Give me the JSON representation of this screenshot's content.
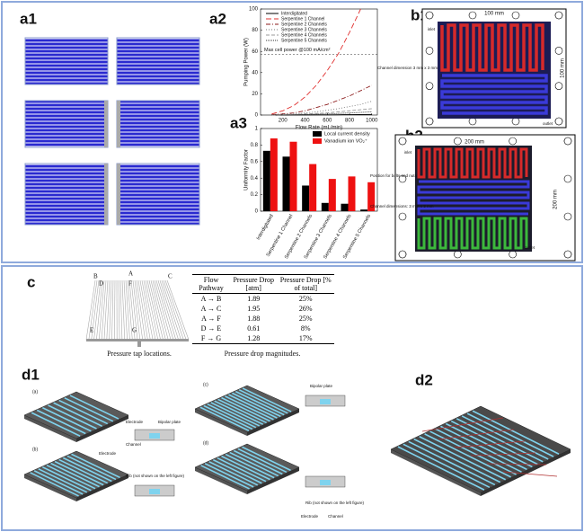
{
  "labels": [
    "a1",
    "a2",
    "a3",
    "b1",
    "b2",
    "c",
    "d1",
    "d2"
  ],
  "chart_data": [
    {
      "type": "line",
      "ylabel": "Pumping Power (W)",
      "xlabel": "Flow Rate (mL/min)",
      "x": [
        100,
        200,
        300,
        400,
        500,
        600,
        700,
        800,
        900,
        1000
      ],
      "xlim": [
        0,
        1050
      ],
      "xticks": [
        200,
        400,
        600,
        800,
        1000
      ],
      "ylim": [
        0,
        100
      ],
      "yticks": [
        0,
        20,
        40,
        60,
        80,
        100
      ],
      "annotation": "Max cell power @100 mA/cm²",
      "reference_line": 57,
      "legend": "upper left",
      "series": [
        {
          "name": "Interdigitated",
          "color": "#000000",
          "dash": "",
          "values": [
            0,
            0,
            0.1,
            0.1,
            0.2,
            0.2,
            0.3,
            0.4,
            0.5,
            0.6
          ]
        },
        {
          "name": "Serpentine 1 Channel",
          "color": "#e0302f",
          "dash": "6 3",
          "values": [
            1,
            4,
            9,
            17,
            28,
            42,
            58,
            78,
            100,
            null
          ]
        },
        {
          "name": "Serpentine 2 Channels",
          "color": "#8b1a1a",
          "dash": "5 2 1 2",
          "values": [
            0.5,
            1,
            2,
            4,
            7,
            10,
            14,
            18,
            23,
            28
          ]
        },
        {
          "name": "Serpentine 3 Channels",
          "color": "#777777",
          "dash": "1 2",
          "values": [
            0,
            0.5,
            1,
            2,
            3,
            4.5,
            6,
            8,
            10,
            13
          ]
        },
        {
          "name": "Serpentine 4 Channels",
          "color": "#999999",
          "dash": "4 2",
          "values": [
            0,
            0.3,
            0.6,
            1,
            1.5,
            2,
            3,
            4,
            5,
            6
          ]
        },
        {
          "name": "Serpentine 5 Channels",
          "color": "#333333",
          "dash": "1 1",
          "values": [
            0,
            0.2,
            0.3,
            0.5,
            0.8,
            1,
            1.5,
            2,
            2.5,
            3
          ]
        }
      ]
    },
    {
      "type": "bar",
      "ylabel": "Uniformity Factor",
      "categories": [
        "Interdigitated",
        "Serpentine 1 Channel",
        "Serpentine 2 Channels",
        "Serpentine 3 Channels",
        "Serpentine 4 Channels",
        "Serpentine 5 Channels"
      ],
      "ylim": [
        0,
        1
      ],
      "yticks": [
        0,
        0.2,
        0.4,
        0.6,
        0.8,
        1
      ],
      "legend": "upper right",
      "series": [
        {
          "name": "Local current density",
          "color": "#000000",
          "values": [
            0.73,
            0.66,
            0.31,
            0.1,
            0.09,
            0.02
          ]
        },
        {
          "name": "Vanadium ion VO₂⁺",
          "color": "#ee1111",
          "values": [
            0.88,
            0.84,
            0.57,
            0.39,
            0.42,
            0.35
          ]
        }
      ]
    }
  ],
  "b1": {
    "width": "100 mm",
    "height": "100 mm",
    "channel": "Channel dimension 3 mm x 3 mm",
    "inlet": "inlet",
    "outlet": "outlet"
  },
  "b2": {
    "width": "200 mm",
    "height": "200 mm",
    "bolts": "Position for bolts and nuts",
    "channel": "Channel dimensions: 3 mm x 3 mm",
    "inlet": "inlet",
    "outlet": "outlet"
  },
  "c": {
    "points": [
      "B",
      "A",
      "C",
      "D",
      "F",
      "E",
      "G"
    ],
    "caption_left": "Pressure tap locations.",
    "caption_right": "Pressure drop magnitudes.",
    "table": {
      "header": [
        "Flow Pathway",
        "Pressure Drop [atm]",
        "Pressure Drop [% of total]"
      ],
      "rows": [
        [
          "A → B",
          1.89,
          "25%"
        ],
        [
          "A → C",
          1.95,
          "26%"
        ],
        [
          "A → F",
          1.88,
          "25%"
        ],
        [
          "D → E",
          0.61,
          "8%"
        ],
        [
          "F → G",
          1.28,
          "17%"
        ]
      ]
    }
  },
  "d1": {
    "subpanels": [
      "(a)",
      "(b)",
      "(c)",
      "(d)"
    ],
    "electrode": "Electrode",
    "channel": "Channel",
    "bipolar": "Bipolar plate",
    "rib": "Rib (not shown on the left figure)"
  }
}
